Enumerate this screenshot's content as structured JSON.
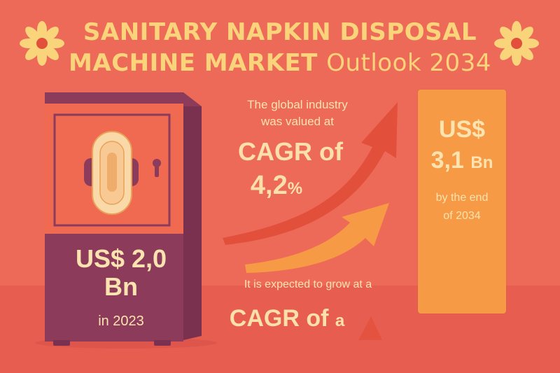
{
  "title": {
    "line1": "SANITARY NAPKIN DISPOSAL",
    "line2_bold": "MACHINE MARKET",
    "line2_light": "Outlook 2034"
  },
  "machine": {
    "amount_line1": "US$ 2,0",
    "amount_line2": "Bn",
    "year": "in 2023"
  },
  "middle": {
    "intro_line1": "The global industry",
    "intro_line2": "was valued at",
    "cagr_label": "CAGR of",
    "cagr_value": "4,2",
    "cagr_unit": "%",
    "expect_text": "It is expected to grow at a",
    "cagr_label_2": "CAGR of",
    "cagr_label_2_tail": "a"
  },
  "pillar": {
    "currency": "US$",
    "value": "3,1",
    "unit": "Bn",
    "note_line1": "by the end",
    "note_line2": "of 2034"
  },
  "colors": {
    "background": "#EE6A58",
    "title": "#F9D47A",
    "machine_body": "#8C3B5A",
    "machine_front": "#F06A52",
    "pillar": "#F79A45",
    "arrow_red": "#E2503C",
    "arrow_orange": "#F79A45",
    "text_light": "#FCE3B0"
  },
  "icons": [
    "flower-icon",
    "sanitary-pad-icon",
    "growth-arrow-icon"
  ]
}
